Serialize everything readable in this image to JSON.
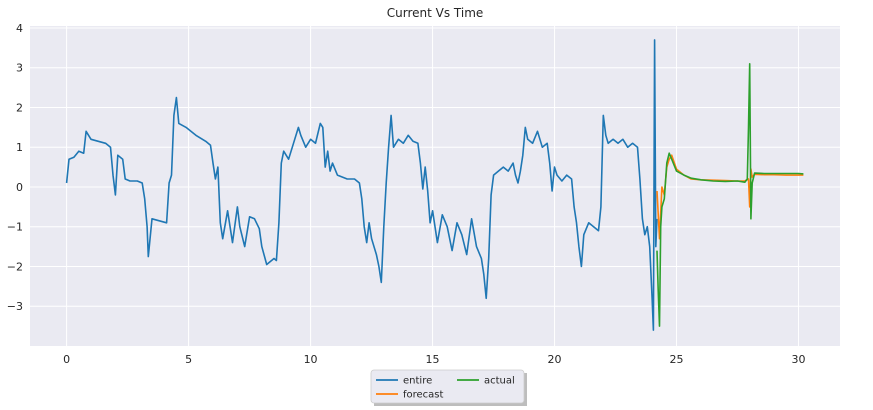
{
  "chart_data": {
    "type": "line",
    "title": "Current Vs Time",
    "xlabel": "",
    "ylabel": "",
    "xlim": [
      -1.5,
      31.7
    ],
    "ylim": [
      -4.0,
      4.05
    ],
    "xticks": [
      0,
      5,
      10,
      15,
      20,
      25,
      30
    ],
    "yticks": [
      -3,
      -2,
      -1,
      0,
      1,
      2,
      3,
      4
    ],
    "grid": true,
    "legend": {
      "placement": "bottom-center",
      "columns": 2
    },
    "series": [
      {
        "name": "entire",
        "color": "#1f77b4",
        "points": [
          [
            0.0,
            0.1
          ],
          [
            0.1,
            0.7
          ],
          [
            0.3,
            0.75
          ],
          [
            0.5,
            0.9
          ],
          [
            0.7,
            0.85
          ],
          [
            0.8,
            1.4
          ],
          [
            1.0,
            1.2
          ],
          [
            1.3,
            1.15
          ],
          [
            1.6,
            1.1
          ],
          [
            1.8,
            1.0
          ],
          [
            1.9,
            0.3
          ],
          [
            2.0,
            -0.2
          ],
          [
            2.1,
            0.8
          ],
          [
            2.3,
            0.7
          ],
          [
            2.4,
            0.2
          ],
          [
            2.6,
            0.15
          ],
          [
            2.9,
            0.15
          ],
          [
            3.1,
            0.1
          ],
          [
            3.2,
            -0.3
          ],
          [
            3.3,
            -1.0
          ],
          [
            3.35,
            -1.75
          ],
          [
            3.5,
            -0.8
          ],
          [
            3.8,
            -0.85
          ],
          [
            4.1,
            -0.9
          ],
          [
            4.2,
            0.1
          ],
          [
            4.3,
            0.3
          ],
          [
            4.4,
            1.8
          ],
          [
            4.5,
            2.25
          ],
          [
            4.6,
            1.6
          ],
          [
            4.9,
            1.5
          ],
          [
            5.3,
            1.3
          ],
          [
            5.7,
            1.15
          ],
          [
            5.9,
            1.05
          ],
          [
            6.0,
            0.6
          ],
          [
            6.1,
            0.2
          ],
          [
            6.2,
            0.5
          ],
          [
            6.3,
            -0.9
          ],
          [
            6.4,
            -1.3
          ],
          [
            6.6,
            -0.6
          ],
          [
            6.8,
            -1.4
          ],
          [
            7.0,
            -0.5
          ],
          [
            7.1,
            -1.0
          ],
          [
            7.3,
            -1.5
          ],
          [
            7.5,
            -0.75
          ],
          [
            7.7,
            -0.8
          ],
          [
            7.9,
            -1.05
          ],
          [
            8.0,
            -1.5
          ],
          [
            8.2,
            -1.95
          ],
          [
            8.5,
            -1.8
          ],
          [
            8.6,
            -1.85
          ],
          [
            8.7,
            -0.9
          ],
          [
            8.8,
            0.6
          ],
          [
            8.9,
            0.9
          ],
          [
            9.1,
            0.7
          ],
          [
            9.3,
            1.1
          ],
          [
            9.5,
            1.5
          ],
          [
            9.6,
            1.3
          ],
          [
            9.8,
            1.0
          ],
          [
            10.0,
            1.2
          ],
          [
            10.2,
            1.1
          ],
          [
            10.4,
            1.6
          ],
          [
            10.5,
            1.5
          ],
          [
            10.6,
            0.5
          ],
          [
            10.7,
            0.9
          ],
          [
            10.8,
            0.4
          ],
          [
            10.9,
            0.6
          ],
          [
            11.1,
            0.3
          ],
          [
            11.5,
            0.2
          ],
          [
            11.8,
            0.2
          ],
          [
            12.0,
            0.1
          ],
          [
            12.1,
            -0.3
          ],
          [
            12.2,
            -1.0
          ],
          [
            12.3,
            -1.4
          ],
          [
            12.4,
            -0.9
          ],
          [
            12.5,
            -1.3
          ],
          [
            12.7,
            -1.7
          ],
          [
            12.8,
            -2.0
          ],
          [
            12.9,
            -2.4
          ],
          [
            13.0,
            -1.0
          ],
          [
            13.1,
            0.1
          ],
          [
            13.2,
            1.0
          ],
          [
            13.3,
            1.8
          ],
          [
            13.4,
            1.0
          ],
          [
            13.6,
            1.2
          ],
          [
            13.8,
            1.1
          ],
          [
            14.0,
            1.3
          ],
          [
            14.2,
            1.15
          ],
          [
            14.4,
            1.1
          ],
          [
            14.5,
            0.6
          ],
          [
            14.6,
            -0.05
          ],
          [
            14.7,
            0.5
          ],
          [
            14.8,
            -0.1
          ],
          [
            14.9,
            -0.9
          ],
          [
            15.0,
            -0.6
          ],
          [
            15.2,
            -1.4
          ],
          [
            15.4,
            -0.7
          ],
          [
            15.6,
            -1.0
          ],
          [
            15.8,
            -1.6
          ],
          [
            16.0,
            -0.9
          ],
          [
            16.2,
            -1.2
          ],
          [
            16.4,
            -1.7
          ],
          [
            16.6,
            -0.8
          ],
          [
            16.8,
            -1.5
          ],
          [
            17.0,
            -1.8
          ],
          [
            17.1,
            -2.2
          ],
          [
            17.2,
            -2.8
          ],
          [
            17.3,
            -1.8
          ],
          [
            17.4,
            -0.2
          ],
          [
            17.5,
            0.3
          ],
          [
            17.7,
            0.4
          ],
          [
            17.9,
            0.5
          ],
          [
            18.1,
            0.4
          ],
          [
            18.3,
            0.6
          ],
          [
            18.4,
            0.3
          ],
          [
            18.5,
            0.1
          ],
          [
            18.6,
            0.4
          ],
          [
            18.7,
            0.8
          ],
          [
            18.8,
            1.5
          ],
          [
            18.9,
            1.2
          ],
          [
            19.1,
            1.1
          ],
          [
            19.3,
            1.4
          ],
          [
            19.5,
            1.0
          ],
          [
            19.7,
            1.1
          ],
          [
            19.8,
            0.6
          ],
          [
            19.9,
            -0.1
          ],
          [
            20.0,
            0.5
          ],
          [
            20.1,
            0.3
          ],
          [
            20.3,
            0.15
          ],
          [
            20.5,
            0.3
          ],
          [
            20.7,
            0.2
          ],
          [
            20.8,
            -0.5
          ],
          [
            20.9,
            -0.9
          ],
          [
            21.0,
            -1.5
          ],
          [
            21.1,
            -2.0
          ],
          [
            21.2,
            -1.2
          ],
          [
            21.4,
            -0.9
          ],
          [
            21.6,
            -1.0
          ],
          [
            21.8,
            -1.1
          ],
          [
            21.9,
            -0.5
          ],
          [
            22.0,
            1.8
          ],
          [
            22.1,
            1.3
          ],
          [
            22.2,
            1.1
          ],
          [
            22.4,
            1.2
          ],
          [
            22.6,
            1.1
          ],
          [
            22.8,
            1.2
          ],
          [
            23.0,
            1.0
          ],
          [
            23.2,
            1.1
          ],
          [
            23.4,
            1.0
          ],
          [
            23.5,
            0.2
          ],
          [
            23.6,
            -0.8
          ],
          [
            23.7,
            -1.2
          ],
          [
            23.8,
            -1.0
          ],
          [
            23.9,
            -1.5
          ],
          [
            24.0,
            -2.8
          ],
          [
            24.05,
            -3.6
          ],
          [
            24.1,
            3.7
          ],
          [
            24.15,
            -1.5
          ],
          [
            24.2,
            -0.8
          ]
        ]
      },
      {
        "name": "forecast",
        "color": "#ff7f0e",
        "points": [
          [
            24.2,
            -0.1
          ],
          [
            24.3,
            -1.3
          ],
          [
            24.4,
            0.0
          ],
          [
            24.5,
            -0.2
          ],
          [
            24.6,
            0.5
          ],
          [
            24.7,
            0.7
          ],
          [
            24.8,
            0.8
          ],
          [
            25.0,
            0.45
          ],
          [
            25.3,
            0.3
          ],
          [
            25.6,
            0.2
          ],
          [
            26.0,
            0.18
          ],
          [
            26.5,
            0.17
          ],
          [
            27.0,
            0.16
          ],
          [
            27.5,
            0.15
          ],
          [
            27.8,
            0.15
          ],
          [
            27.95,
            0.2
          ],
          [
            28.0,
            -0.5
          ],
          [
            28.05,
            0.45
          ],
          [
            28.1,
            0.25
          ],
          [
            28.2,
            0.32
          ],
          [
            28.6,
            0.31
          ],
          [
            29.0,
            0.31
          ],
          [
            29.5,
            0.3
          ],
          [
            30.0,
            0.3
          ],
          [
            30.2,
            0.3
          ]
        ]
      },
      {
        "name": "actual",
        "color": "#2ca02c",
        "points": [
          [
            24.2,
            -1.6
          ],
          [
            24.25,
            -2.6
          ],
          [
            24.3,
            -3.5
          ],
          [
            24.35,
            -1.0
          ],
          [
            24.4,
            -0.5
          ],
          [
            24.5,
            -0.3
          ],
          [
            24.6,
            0.6
          ],
          [
            24.7,
            0.85
          ],
          [
            24.8,
            0.7
          ],
          [
            25.0,
            0.4
          ],
          [
            25.3,
            0.3
          ],
          [
            25.6,
            0.22
          ],
          [
            26.0,
            0.18
          ],
          [
            26.5,
            0.15
          ],
          [
            27.0,
            0.14
          ],
          [
            27.5,
            0.15
          ],
          [
            27.8,
            0.12
          ],
          [
            27.9,
            0.2
          ],
          [
            27.95,
            1.5
          ],
          [
            28.0,
            3.1
          ],
          [
            28.05,
            -0.8
          ],
          [
            28.1,
            0.1
          ],
          [
            28.2,
            0.35
          ],
          [
            28.6,
            0.34
          ],
          [
            29.0,
            0.34
          ],
          [
            29.5,
            0.34
          ],
          [
            30.0,
            0.34
          ],
          [
            30.2,
            0.33
          ]
        ]
      }
    ]
  }
}
